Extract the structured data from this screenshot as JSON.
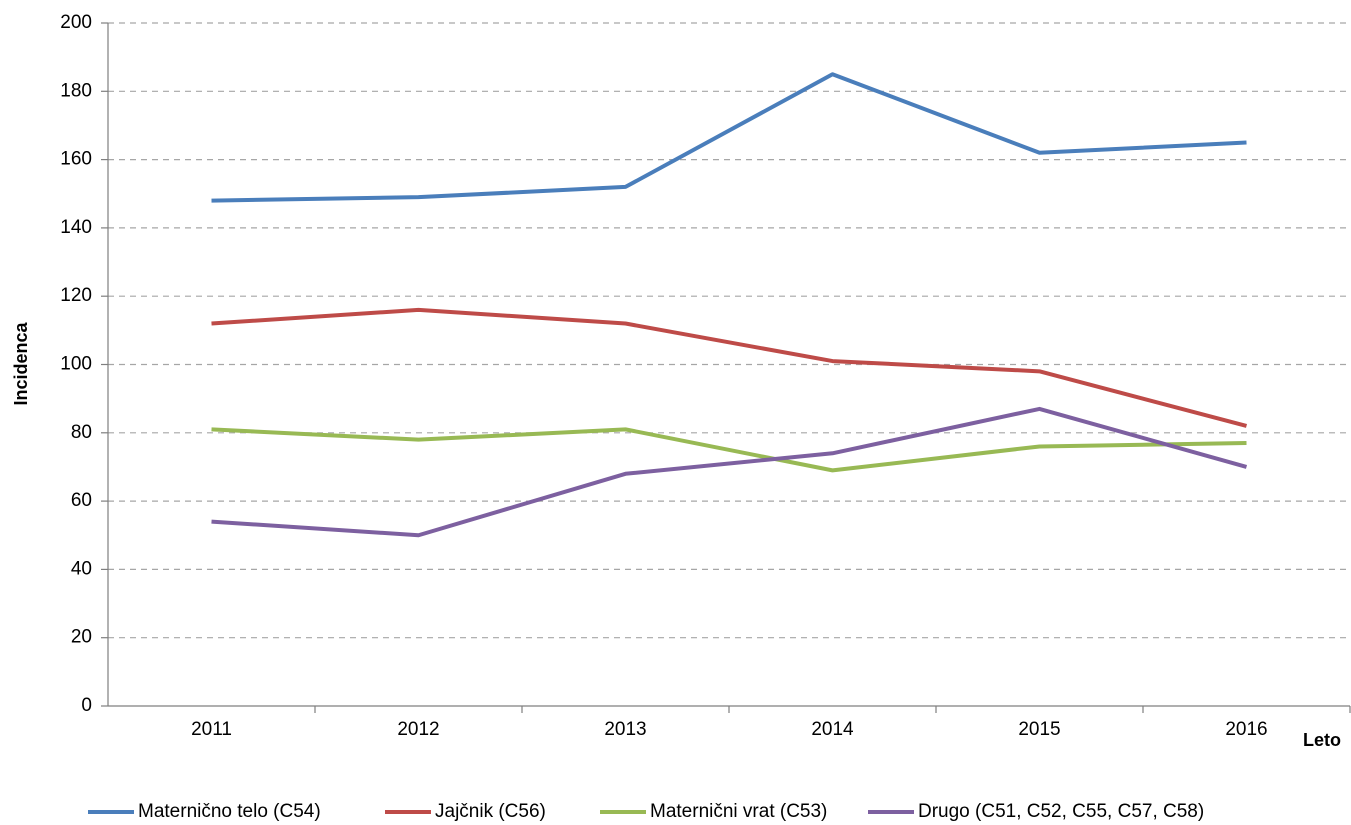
{
  "chart_data": {
    "type": "line",
    "y_label": "Incidenca",
    "x_label": "Leto",
    "categories": [
      "2011",
      "2012",
      "2013",
      "2014",
      "2015",
      "2016"
    ],
    "series": [
      {
        "name": "Maternično telo (C54)",
        "color": "#4a7ebb",
        "values": [
          148,
          149,
          152,
          185,
          162,
          165
        ]
      },
      {
        "name": "Jajčnik (C56)",
        "color": "#be4b48",
        "values": [
          112,
          116,
          112,
          101,
          98,
          82
        ]
      },
      {
        "name": "Maternični vrat (C53)",
        "color": "#98b954",
        "values": [
          81,
          78,
          81,
          69,
          76,
          77
        ]
      },
      {
        "name": "Drugo (C51, C52, C55, C57, C58)",
        "color": "#7d60a0",
        "values": [
          54,
          50,
          68,
          74,
          87,
          70
        ]
      }
    ],
    "ylim": [
      0,
      200
    ],
    "yticks": [
      0,
      20,
      40,
      60,
      80,
      100,
      120,
      140,
      160,
      180,
      200
    ],
    "grid": true,
    "legend": "bottom"
  }
}
